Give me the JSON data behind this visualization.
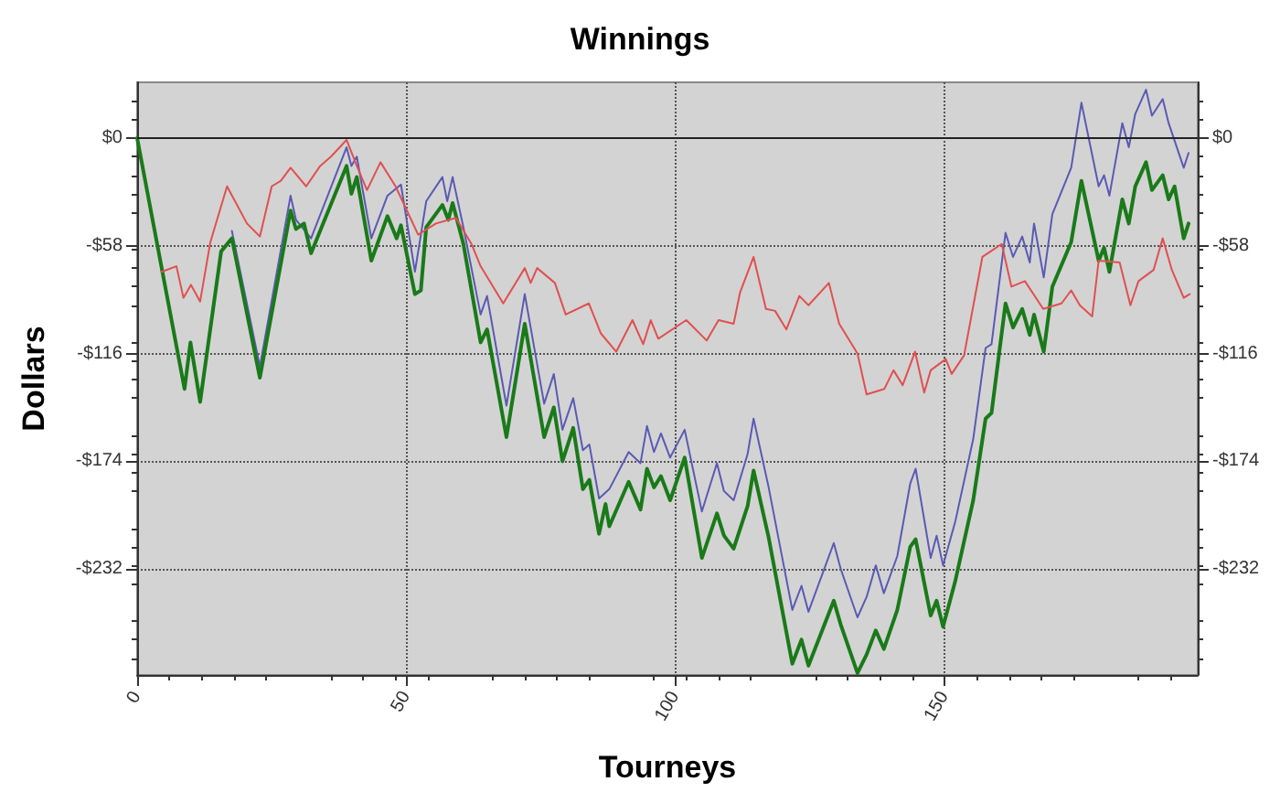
{
  "chart_data": {
    "type": "line",
    "title": "Winnings",
    "xlabel": "Tourneys",
    "ylabel": "Dollars",
    "xlim": [
      0,
      197
    ],
    "xticks": [
      0,
      50,
      100,
      150
    ],
    "ylim": [
      -289,
      30
    ],
    "yticks": [
      {
        "value": 0,
        "label": "$0"
      },
      {
        "value": -58,
        "label": "-$58"
      },
      {
        "value": -116,
        "label": "-$116"
      },
      {
        "value": -174,
        "label": "-$174"
      },
      {
        "value": -232,
        "label": "-$232"
      }
    ],
    "y2lim": [
      -289,
      30
    ],
    "y2ticks": [
      {
        "value": 0,
        "label": "$0"
      },
      {
        "value": -58,
        "label": "-$58"
      },
      {
        "value": -116,
        "label": "-$116"
      },
      {
        "value": -174,
        "label": "-$174"
      },
      {
        "value": -232,
        "label": "-$232"
      }
    ],
    "grid": true,
    "marker": "none",
    "line_style": "solid",
    "ref_lines": [
      {
        "axis": "y",
        "value": 0,
        "color": "#222222"
      }
    ],
    "series": [
      {
        "color": "#5a5ab4",
        "x": [
          17.6,
          22.8,
          28.5,
          29.5,
          32.3,
          38.9,
          39.8,
          40.8,
          43.5,
          46.5,
          49,
          51.6,
          53.7,
          56.7,
          57.6,
          58.6,
          60.6,
          63.8,
          65,
          68.6,
          72,
          75.6,
          77.4,
          79,
          81,
          82.8,
          84,
          85.8,
          87.7,
          91.3,
          93.5,
          94.7,
          96,
          97.3,
          99,
          101.7,
          104.9,
          107.7,
          109,
          110.8,
          113.4,
          114.5,
          117.3,
          121.7,
          123.4,
          124.7,
          129.4,
          130.7,
          133.8,
          135.5,
          137.2,
          138.7,
          141.2,
          143.6,
          144.6,
          147.4,
          148.5,
          149.7,
          152,
          155.3,
          157.6,
          158.7,
          161.3,
          162.7,
          164.4,
          165.8,
          166.6,
          168.4,
          170,
          173.5,
          175.4,
          178.6,
          179.6,
          180.6,
          183,
          184.2,
          185.4,
          187.4,
          188.5,
          190.5,
          191.6,
          194.4,
          195.3
        ],
        "values": [
          -50,
          -123,
          -31,
          -44,
          -54,
          -5,
          -15,
          -10,
          -54,
          -31,
          -25,
          -72,
          -34,
          -21,
          -34,
          -21,
          -48,
          -95,
          -85,
          -144,
          -84,
          -143,
          -127,
          -157,
          -140,
          -168,
          -165,
          -194,
          -189,
          -169,
          -175,
          -155,
          -169,
          -159,
          -172,
          -157,
          -201,
          -175,
          -190,
          -195,
          -170,
          -151,
          -188,
          -254,
          -241,
          -255,
          -218,
          -232,
          -258,
          -247,
          -230,
          -245,
          -225,
          -186,
          -178,
          -226,
          -214,
          -230,
          -206,
          -162,
          -113,
          -111,
          -51,
          -64,
          -53,
          -67,
          -46,
          -75,
          -41,
          -16,
          19,
          -26,
          -20,
          -31,
          8,
          -5,
          13,
          26,
          12,
          21,
          8,
          -16,
          -8
        ]
      },
      {
        "color": "#1a7a1a",
        "x": [
          0,
          8.8,
          9.9,
          11.7,
          15.6,
          17.6,
          22.8,
          28.5,
          29.5,
          31,
          32.3,
          38.9,
          39.8,
          40.8,
          43.5,
          46.5,
          48.2,
          49,
          51.6,
          52.7,
          53.7,
          56.7,
          57.8,
          58.6,
          60.6,
          63.8,
          65,
          68.6,
          72,
          75.6,
          77.4,
          79,
          81,
          82.8,
          84,
          85.8,
          87,
          87.7,
          91.3,
          93.5,
          94.7,
          96,
          97.3,
          99,
          101.7,
          104.9,
          107.7,
          109,
          110.8,
          113.4,
          114.5,
          117.3,
          121.7,
          123.4,
          124.7,
          129.4,
          130.7,
          133.8,
          135.5,
          137.2,
          138.7,
          141.2,
          143.6,
          144.6,
          147.4,
          148.5,
          149.7,
          152,
          155.3,
          157.6,
          158.7,
          161.3,
          162.7,
          164.4,
          165.8,
          166.6,
          168.4,
          170,
          173.5,
          175.4,
          178.6,
          179.6,
          180.6,
          183,
          184.2,
          185.4,
          187.4,
          188.5,
          190.5,
          191.6,
          192.7,
          194.4,
          195.3
        ],
        "values": [
          0,
          -135,
          -110,
          -142,
          -61,
          -54,
          -129,
          -39,
          -49,
          -46,
          -62,
          -15,
          -30,
          -21,
          -66,
          -42,
          -54,
          -47,
          -84,
          -82,
          -48,
          -36,
          -44,
          -35,
          -57,
          -110,
          -103,
          -161,
          -100,
          -161,
          -145,
          -174,
          -156,
          -189,
          -184,
          -213,
          -197,
          -209,
          -185,
          -200,
          -178,
          -188,
          -182,
          -195,
          -172,
          -226,
          -202,
          -214,
          -221,
          -198,
          -179,
          -215,
          -283,
          -270,
          -284,
          -249,
          -262,
          -288,
          -278,
          -265,
          -275,
          -254,
          -220,
          -216,
          -257,
          -249,
          -263,
          -238,
          -195,
          -151,
          -148,
          -89,
          -102,
          -92,
          -106,
          -95,
          -115,
          -80,
          -56,
          -23,
          -66,
          -59,
          -72,
          -33,
          -46,
          -26,
          -13,
          -28,
          -20,
          -33,
          -26,
          -54,
          -46
        ]
      },
      {
        "color": "#e05050",
        "x": [
          4.5,
          7.3,
          8.6,
          10,
          11.7,
          13.6,
          16.7,
          20.4,
          22.8,
          25,
          26.7,
          28.5,
          31.4,
          34,
          36,
          38.9,
          40.8,
          42.7,
          45.2,
          48,
          52.2,
          55.5,
          59.2,
          62.1,
          63.8,
          68,
          72,
          73.1,
          74.3,
          77.6,
          79.6,
          83.9,
          86.1,
          89,
          92,
          94,
          95.4,
          96.8,
          102,
          105.8,
          108,
          110.8,
          112,
          114.5,
          116.8,
          118.5,
          120.6,
          123,
          124.7,
          128.5,
          130.4,
          133.8,
          135.5,
          138.8,
          140.5,
          142.2,
          144.5,
          146.2,
          147.4,
          150.2,
          151.3,
          153.6,
          157,
          160.6,
          162.4,
          164.9,
          168.3,
          171.7,
          173.5,
          175.1,
          177.4,
          178.6,
          182.5,
          184.5,
          186,
          188.8,
          190.5,
          192.2,
          194.4,
          195.5
        ],
        "values": [
          -72,
          -69,
          -86,
          -79,
          -88,
          -56,
          -26,
          -46,
          -53,
          -26,
          -23,
          -16,
          -26,
          -15,
          -10,
          -1,
          -15,
          -28,
          -13,
          -26,
          -52,
          -46,
          -43,
          -57,
          -69,
          -89,
          -70,
          -78,
          -70,
          -78,
          -95,
          -89,
          -105,
          -115,
          -98,
          -111,
          -98,
          -108,
          -98,
          -109,
          -98,
          -100,
          -83,
          -64,
          -92,
          -93,
          -103,
          -85,
          -90,
          -78,
          -100,
          -116,
          -138,
          -135,
          -125,
          -133,
          -115,
          -137,
          -125,
          -119,
          -127,
          -117,
          -64,
          -57,
          -80,
          -77,
          -92,
          -89,
          -82,
          -90,
          -96,
          -66,
          -67,
          -90,
          -77,
          -71,
          -54,
          -71,
          -86,
          -84
        ]
      }
    ]
  }
}
